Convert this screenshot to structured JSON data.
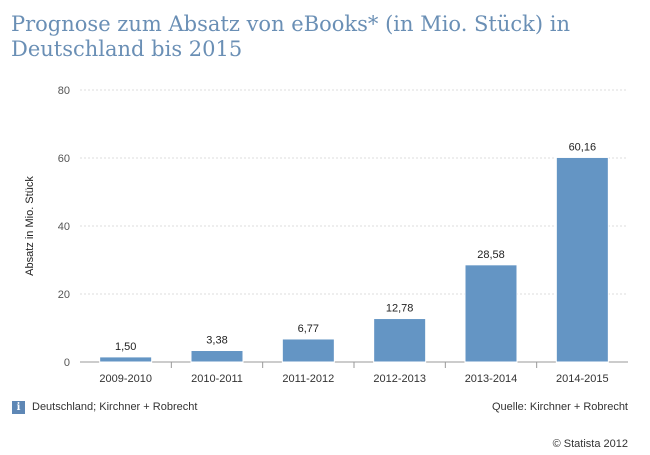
{
  "title": "Prognose zum Absatz von eBooks* (in Mio. Stück) in Deutschland bis 2015",
  "footer": {
    "region_note": "Deutschland; Kirchner + Robrecht",
    "source": "Quelle: Kirchner + Robrecht",
    "copyright": "© Statista 2012",
    "info_icon": "info-icon"
  },
  "colors": {
    "bar": "#6495c4",
    "title": "#6a8fb5",
    "grid": "#dddddd"
  },
  "chart_data": {
    "type": "bar",
    "categories": [
      "2009-2010",
      "2010-2011",
      "2011-2012",
      "2012-2013",
      "2013-2014",
      "2014-2015"
    ],
    "values": [
      1.5,
      3.38,
      6.77,
      12.78,
      28.58,
      60.16
    ],
    "value_labels": [
      "1,50",
      "3,38",
      "6,77",
      "12,78",
      "28,58",
      "60,16"
    ],
    "ylabel": "Absatz in Mio. Stück",
    "xlabel": "",
    "ylim": [
      0,
      80
    ],
    "yticks": [
      0,
      20,
      40,
      60,
      80
    ],
    "grid": true
  }
}
